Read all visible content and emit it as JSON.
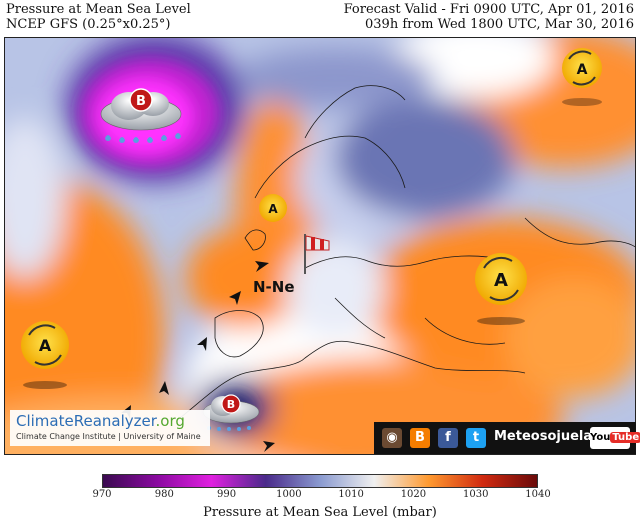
{
  "header": {
    "title": "Pressure at Mean Sea Level",
    "model": "NCEP GFS (0.25°x0.25°)",
    "valid": "Forecast Valid - Fri 0900 UTC, Apr 01, 2016",
    "run": "039h from Wed 1800 UTC, Mar 30, 2016"
  },
  "map": {
    "low_label": "B",
    "high_label": "A",
    "wind_label": "N-Ne"
  },
  "colorbar": {
    "title": "Pressure at Mean Sea Level (mbar)",
    "ticks": [
      "970",
      "980",
      "990",
      "1000",
      "1010",
      "1020",
      "1030",
      "1040"
    ],
    "colors": [
      "#3a0a50",
      "#8a0aa0",
      "#e020e0",
      "#4a2a8a",
      "#8a9ad0",
      "#f0f0f0",
      "#ff9a30",
      "#d02a10",
      "#6a0a0a"
    ]
  },
  "credit": {
    "name": "ClimateReanalyzer",
    "suffix": ".org",
    "sub": "Climate Change Institute | University of Maine"
  },
  "social": {
    "brand": "Meteosojuela",
    "youtube_a": "You",
    "youtube_b": "Tube"
  }
}
